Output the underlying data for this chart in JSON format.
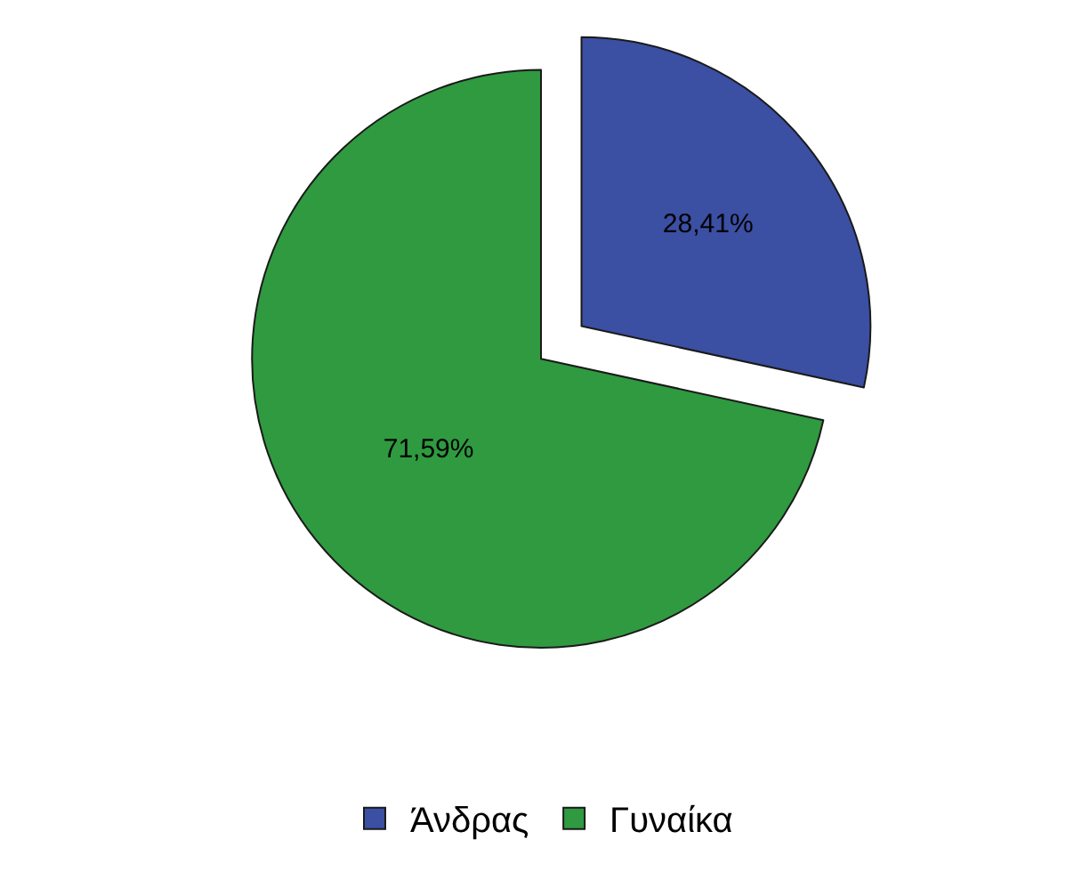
{
  "chart_data": {
    "type": "pie",
    "categories": [
      "Άνδρας",
      "Γυναίκα"
    ],
    "values": [
      28.41,
      71.59
    ],
    "colors": [
      "#3b4fa3",
      "#2f9a3f"
    ],
    "value_labels": [
      "28,41%",
      "71,59%"
    ],
    "legend": "bottom"
  }
}
